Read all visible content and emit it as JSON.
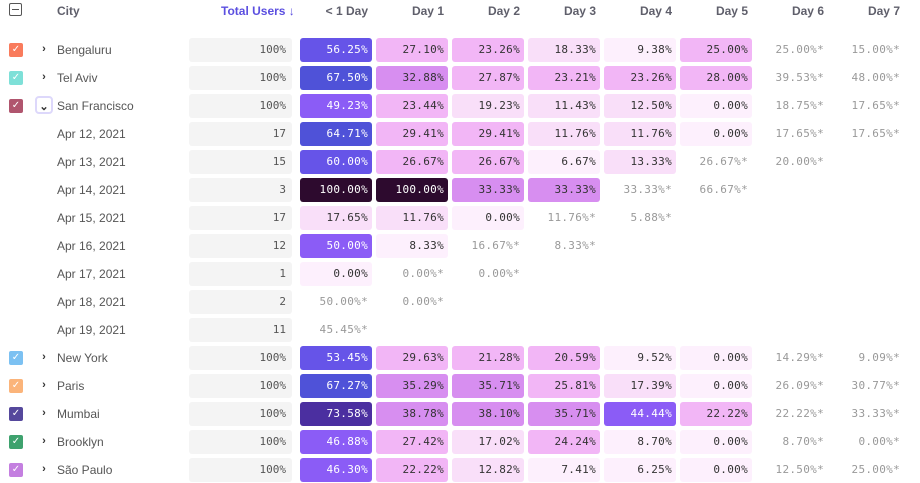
{
  "header": {
    "city": "City",
    "total_users": "Total Users ↓",
    "columns": [
      "< 1 Day",
      "Day 1",
      "Day 2",
      "Day 3",
      "Day 4",
      "Day 5",
      "Day 6",
      "Day 7"
    ]
  },
  "colors": {
    "accent": "#5b4fe0"
  },
  "rows": [
    {
      "label": "Bengaluru",
      "type": "city",
      "expanded": false,
      "color": "#f97b5c",
      "total": "100%",
      "cells": [
        "56.25%",
        "27.10%",
        "23.26%",
        "18.33%",
        "9.38%",
        "25.00%",
        "25.00%*",
        "15.00%*"
      ]
    },
    {
      "label": "Tel Aviv",
      "type": "city",
      "expanded": false,
      "color": "#7ee0d8",
      "total": "100%",
      "cells": [
        "67.50%",
        "32.88%",
        "27.87%",
        "23.21%",
        "23.26%",
        "28.00%",
        "39.53%*",
        "48.00%*"
      ]
    },
    {
      "label": "San Francisco",
      "type": "city",
      "expanded": true,
      "color": "#b0556e",
      "total": "100%",
      "cells": [
        "49.23%",
        "23.44%",
        "19.23%",
        "11.43%",
        "12.50%",
        "0.00%",
        "18.75%*",
        "17.65%*"
      ]
    },
    {
      "label": "Apr 12, 2021",
      "type": "date",
      "total": "17",
      "cells": [
        "64.71%",
        "29.41%",
        "29.41%",
        "11.76%",
        "11.76%",
        "0.00%",
        "17.65%*",
        "17.65%*"
      ]
    },
    {
      "label": "Apr 13, 2021",
      "type": "date",
      "total": "15",
      "cells": [
        "60.00%",
        "26.67%",
        "26.67%",
        "6.67%",
        "13.33%",
        "26.67%*",
        "20.00%*",
        ""
      ]
    },
    {
      "label": "Apr 14, 2021",
      "type": "date",
      "total": "3",
      "cells": [
        "100.00%",
        "100.00%",
        "33.33%",
        "33.33%",
        "33.33%*",
        "66.67%*",
        "",
        ""
      ]
    },
    {
      "label": "Apr 15, 2021",
      "type": "date",
      "total": "17",
      "cells": [
        "17.65%",
        "11.76%",
        "0.00%",
        "11.76%*",
        "5.88%*",
        "",
        "",
        ""
      ]
    },
    {
      "label": "Apr 16, 2021",
      "type": "date",
      "total": "12",
      "cells": [
        "50.00%",
        "8.33%",
        "16.67%*",
        "8.33%*",
        "",
        "",
        "",
        ""
      ]
    },
    {
      "label": "Apr 17, 2021",
      "type": "date",
      "total": "1",
      "cells": [
        "0.00%",
        "0.00%*",
        "0.00%*",
        "",
        "",
        "",
        "",
        ""
      ]
    },
    {
      "label": "Apr 18, 2021",
      "type": "date",
      "total": "2",
      "cells": [
        "50.00%*",
        "0.00%*",
        "",
        "",
        "",
        "",
        "",
        ""
      ]
    },
    {
      "label": "Apr 19, 2021",
      "type": "date",
      "total": "11",
      "cells": [
        "45.45%*",
        "",
        "",
        "",
        "",
        "",
        "",
        ""
      ]
    },
    {
      "label": "New York",
      "type": "city",
      "expanded": false,
      "color": "#7cc1f2",
      "total": "100%",
      "cells": [
        "53.45%",
        "29.63%",
        "21.28%",
        "20.59%",
        "9.52%",
        "0.00%",
        "14.29%*",
        "9.09%*"
      ]
    },
    {
      "label": "Paris",
      "type": "city",
      "expanded": false,
      "color": "#fbb47a",
      "total": "100%",
      "cells": [
        "67.27%",
        "35.29%",
        "35.71%",
        "25.81%",
        "17.39%",
        "0.00%",
        "26.09%*",
        "30.77%*"
      ]
    },
    {
      "label": "Mumbai",
      "type": "city",
      "expanded": false,
      "color": "#55489c",
      "total": "100%",
      "cells": [
        "73.58%",
        "38.78%",
        "38.10%",
        "35.71%",
        "44.44%",
        "22.22%",
        "22.22%*",
        "33.33%*"
      ]
    },
    {
      "label": "Brooklyn",
      "type": "city",
      "expanded": false,
      "color": "#3ea26e",
      "total": "100%",
      "cells": [
        "46.88%",
        "27.42%",
        "17.02%",
        "24.24%",
        "8.70%",
        "0.00%",
        "8.70%*",
        "0.00%*"
      ]
    },
    {
      "label": "São Paulo",
      "type": "city",
      "expanded": false,
      "color": "#c47fe0",
      "total": "100%",
      "cells": [
        "46.30%",
        "22.22%",
        "12.82%",
        "7.41%",
        "6.25%",
        "0.00%",
        "12.50%*",
        "25.00%*"
      ]
    }
  ]
}
